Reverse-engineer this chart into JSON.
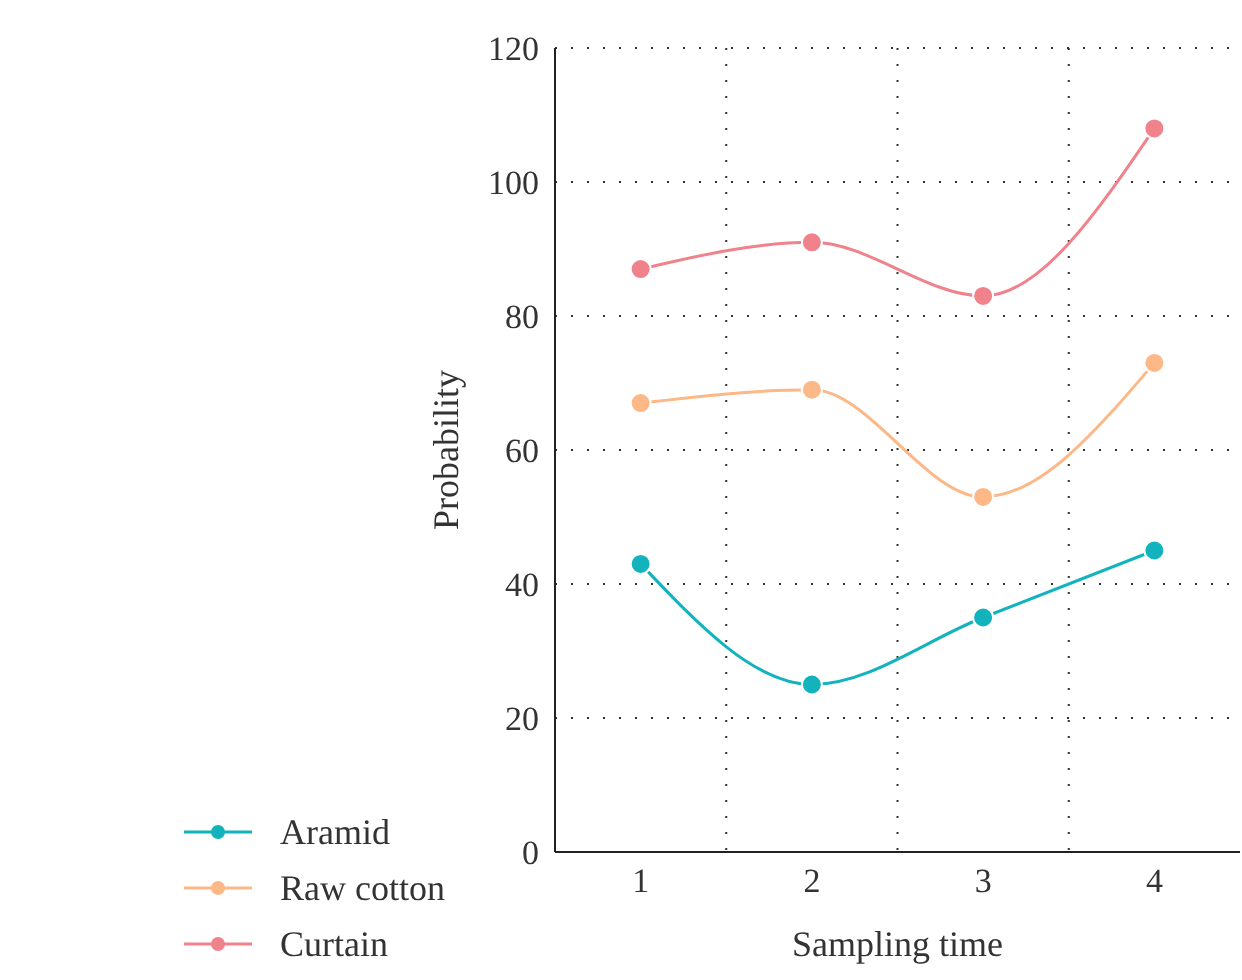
{
  "chart_data": {
    "type": "line",
    "xlabel": "Sampling time",
    "ylabel": "Probability",
    "categories": [
      "1",
      "2",
      "3",
      "4"
    ],
    "series": [
      {
        "name": "Aramid",
        "color": "#12b3bd",
        "values": [
          43,
          25,
          35,
          45
        ]
      },
      {
        "name": "Raw cotton",
        "color": "#fdb887",
        "values": [
          67,
          69,
          53,
          73
        ]
      },
      {
        "name": "Curtain",
        "color": "#f0828c",
        "values": [
          87,
          91,
          83,
          108
        ]
      }
    ],
    "ylim": [
      0,
      120
    ],
    "yticks": [
      0,
      20,
      40,
      60,
      80,
      100,
      120
    ],
    "grid": true,
    "legend": "bottom left",
    "marker": "circle",
    "line_style": "solid"
  }
}
